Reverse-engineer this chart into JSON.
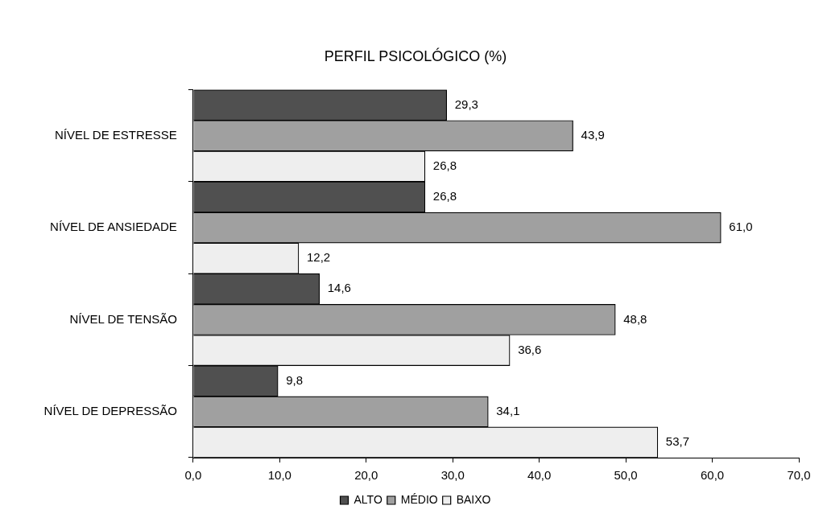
{
  "chart_data": {
    "type": "bar",
    "orientation": "horizontal",
    "title": "PERFIL PSICOLÓGICO (%)",
    "categories": [
      "NÍVEL DE ESTRESSE",
      "NÍVEL DE ANSIEDADE",
      "NÍVEL DE TENSÃO",
      "NÍVEL DE DEPRESSÃO"
    ],
    "series": [
      {
        "name": "ALTO",
        "color": "#505050",
        "values": [
          29.3,
          26.8,
          14.6,
          9.8
        ],
        "value_labels": [
          "29,3",
          "26,8",
          "14,6",
          "9,8"
        ]
      },
      {
        "name": "MÉDIO",
        "color": "#a0a0a0",
        "values": [
          43.9,
          61.0,
          48.8,
          34.1
        ],
        "value_labels": [
          "43,9",
          "61,0",
          "48,8",
          "34,1"
        ]
      },
      {
        "name": "BAIXO",
        "color": "#eeeeee",
        "values": [
          26.8,
          12.2,
          36.6,
          53.7
        ],
        "value_labels": [
          "26,8",
          "12,2",
          "36,6",
          "53,7"
        ]
      }
    ],
    "xlim": [
      0,
      70
    ],
    "xticks": [
      {
        "value": 0,
        "label": "0,0"
      },
      {
        "value": 10,
        "label": "10,0"
      },
      {
        "value": 20,
        "label": "20,0"
      },
      {
        "value": 30,
        "label": "30,0"
      },
      {
        "value": 40,
        "label": "40,0"
      },
      {
        "value": 50,
        "label": "50,0"
      },
      {
        "value": 60,
        "label": "60,0"
      },
      {
        "value": 70,
        "label": "70,0"
      }
    ],
    "grid": false,
    "legend": "bottom"
  }
}
